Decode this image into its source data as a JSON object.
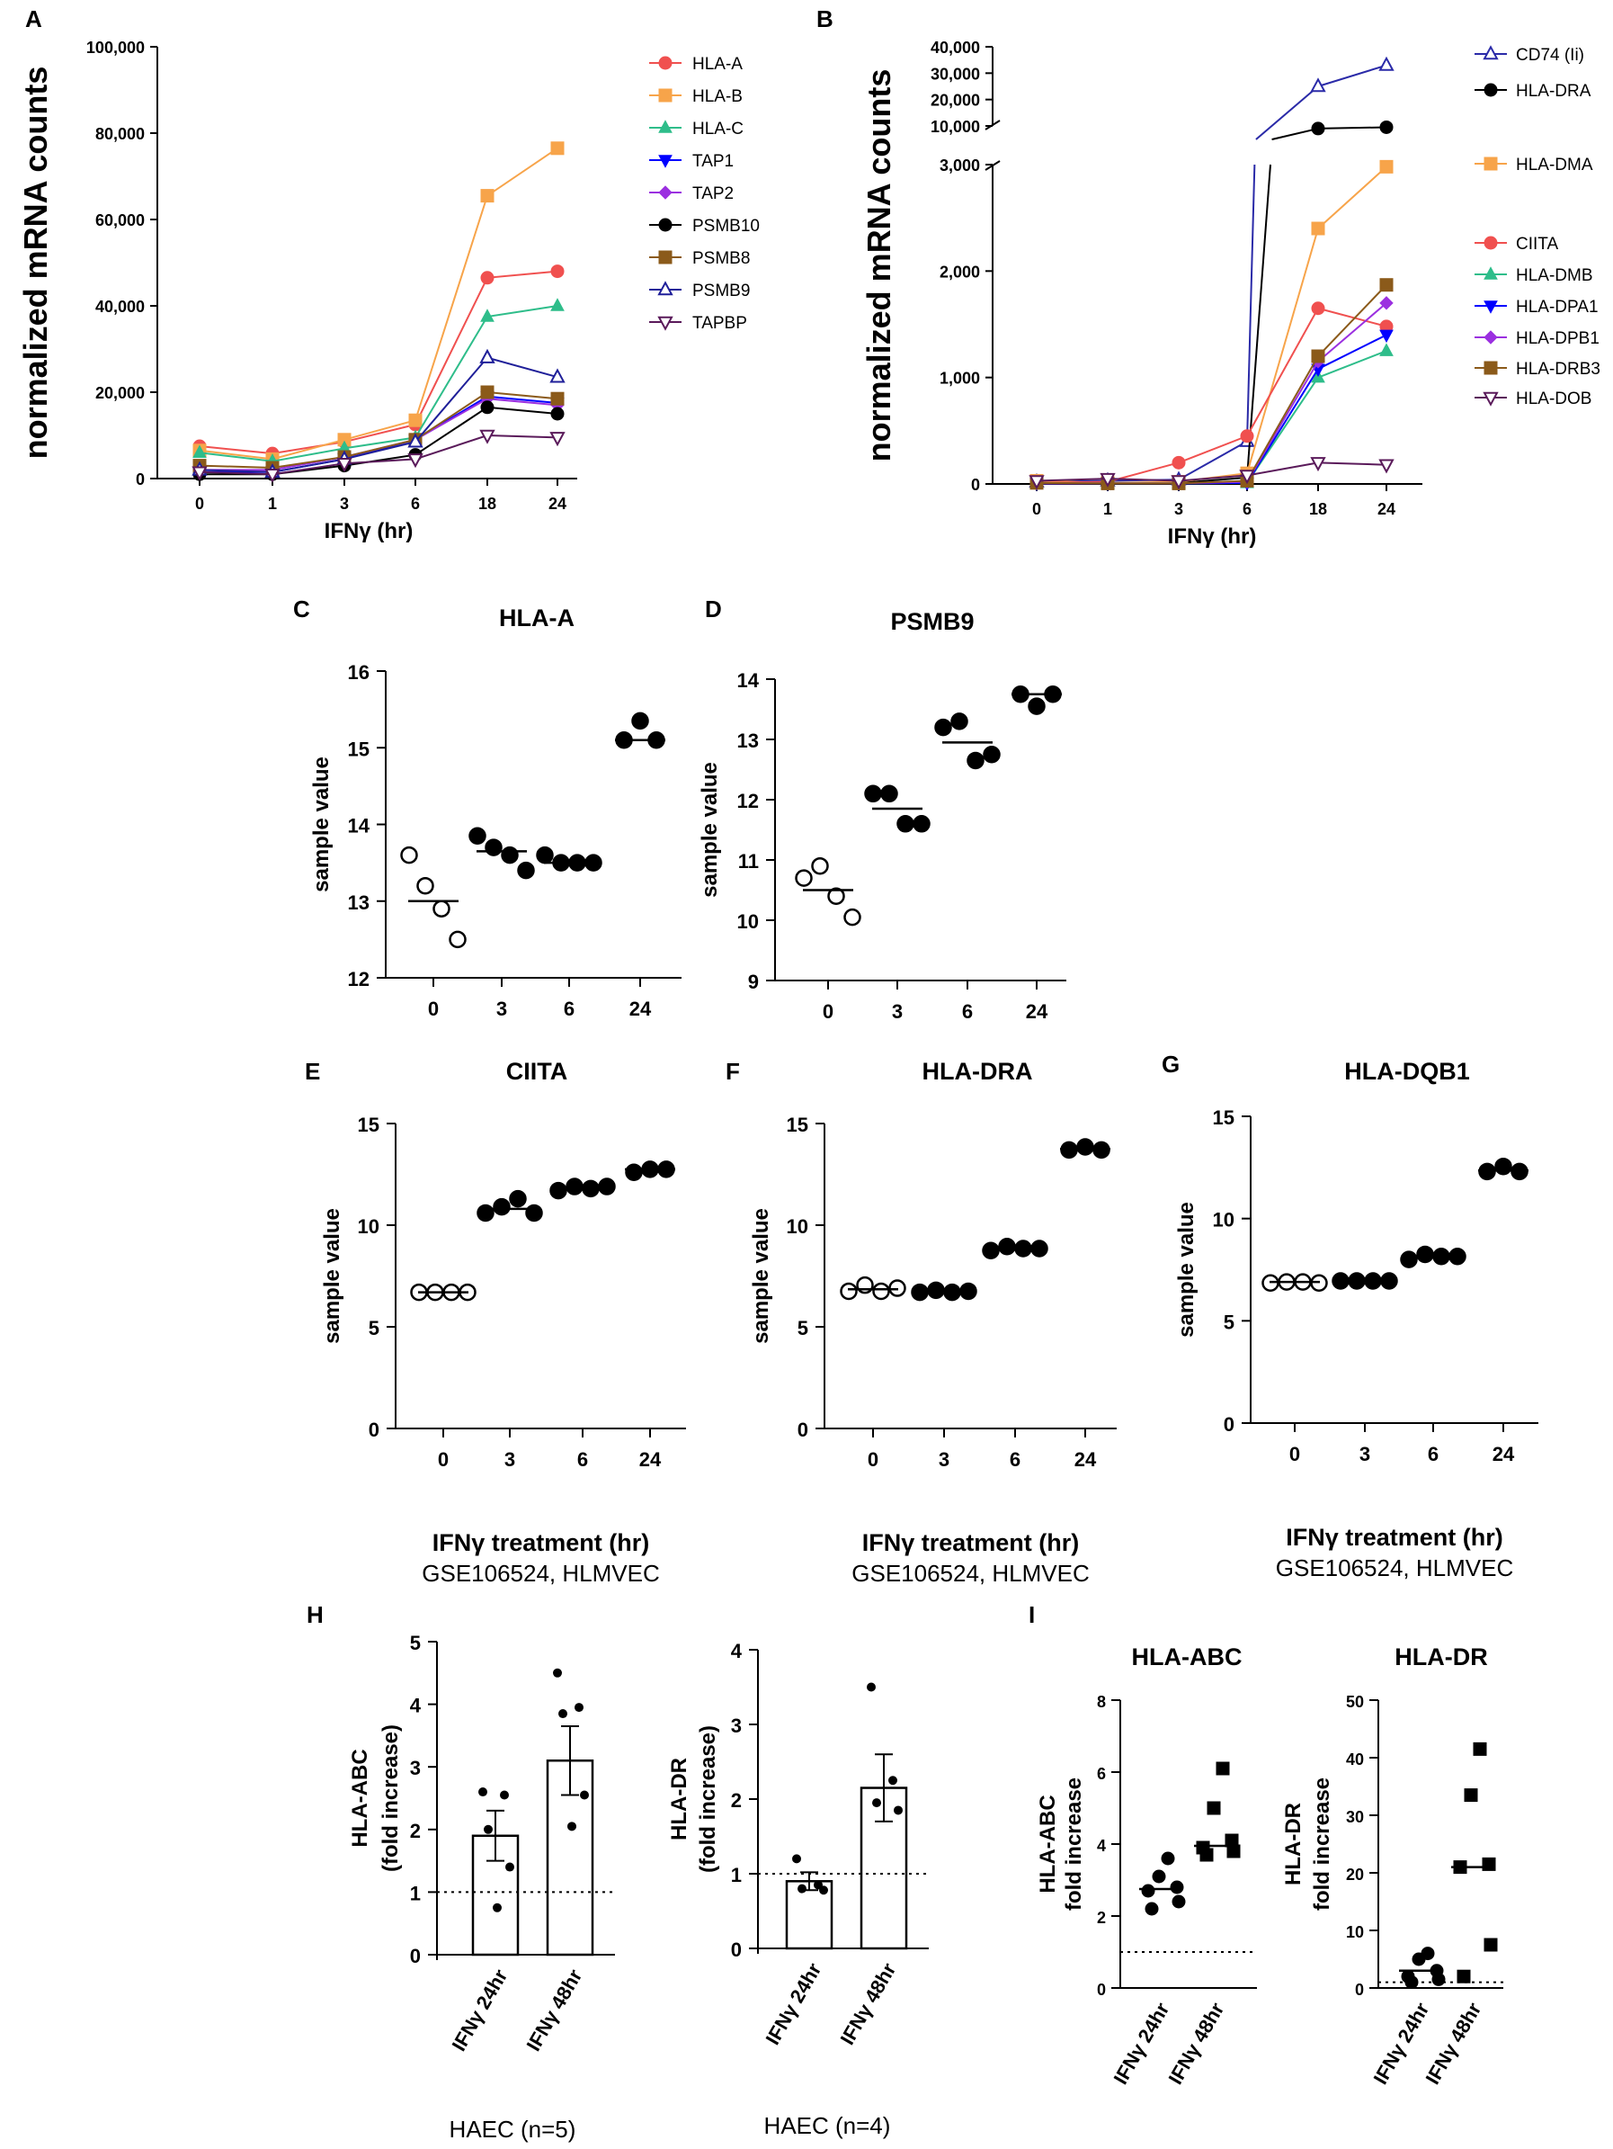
{
  "chart_data": [
    {
      "id": "A",
      "panel_label": "A",
      "type": "line",
      "title": "",
      "xlabel": "IFNγ (hr)",
      "ylabel": "normalized mRNA counts",
      "categories": [
        "0",
        "1",
        "3",
        "6",
        "18",
        "24"
      ],
      "ylim": [
        0,
        100000
      ],
      "yticks": [
        "0",
        "20,000",
        "40,000",
        "60,000",
        "80,000",
        "100,000"
      ],
      "series": [
        {
          "name": "HLA-A",
          "color": "#f0504f",
          "marker": "circle",
          "values": [
            7500,
            5800,
            8500,
            12500,
            46500,
            48000
          ]
        },
        {
          "name": "HLA-B",
          "color": "#f7a44a",
          "marker": "square",
          "values": [
            6500,
            4500,
            9000,
            13500,
            65500,
            76500
          ]
        },
        {
          "name": "HLA-C",
          "color": "#2ebd8a",
          "marker": "triangle-up",
          "values": [
            6000,
            4000,
            7000,
            9500,
            37500,
            40000
          ]
        },
        {
          "name": "TAP1",
          "color": "#0000ff",
          "marker": "triangle-down",
          "values": [
            1500,
            1500,
            4500,
            9000,
            19000,
            17500
          ]
        },
        {
          "name": "TAP2",
          "color": "#9b30e0",
          "marker": "diamond",
          "values": [
            2000,
            2000,
            5000,
            9000,
            18500,
            17000
          ]
        },
        {
          "name": "PSMB10",
          "color": "#000000",
          "marker": "circle",
          "values": [
            1000,
            1000,
            3000,
            5500,
            16500,
            15000
          ]
        },
        {
          "name": "PSMB8",
          "color": "#8b5a1a",
          "marker": "square",
          "values": [
            3000,
            2500,
            5000,
            9000,
            20000,
            18500
          ]
        },
        {
          "name": "PSMB9",
          "color": "#1f1f99",
          "marker": "triangle-up-open",
          "values": [
            2000,
            1500,
            4500,
            8500,
            28000,
            23500
          ]
        },
        {
          "name": "TAPBP",
          "color": "#5a1a5a",
          "marker": "triangle-down-open",
          "values": [
            1500,
            1000,
            3500,
            4500,
            10000,
            9500
          ]
        }
      ]
    },
    {
      "id": "B",
      "panel_label": "B",
      "type": "line",
      "title": "",
      "xlabel": "IFNγ (hr)",
      "ylabel": "normalized mRNA counts",
      "categories": [
        "0",
        "1",
        "3",
        "6",
        "18",
        "24"
      ],
      "ylim": [
        0,
        40000
      ],
      "axis_break": [
        3000,
        10000
      ],
      "yticks": [
        "0",
        "1,000",
        "2,000",
        "3,000",
        "10,000",
        "20,000",
        "30,000",
        "40,000"
      ],
      "series": [
        {
          "name": "CD74 (Ii)",
          "color": "#2a2aa8",
          "marker": "triangle-up-open",
          "values": [
            20,
            30,
            40,
            400,
            25000,
            33000
          ]
        },
        {
          "name": "HLA-DRA",
          "color": "#000000",
          "marker": "circle",
          "values": [
            10,
            10,
            10,
            60,
            9000,
            9500
          ]
        },
        {
          "name": "HLA-DMA",
          "color": "#f7a44a",
          "marker": "square",
          "values": [
            30,
            10,
            20,
            100,
            2400,
            2980
          ]
        },
        {
          "name": "CIITA",
          "color": "#f0504f",
          "marker": "circle",
          "values": [
            10,
            20,
            200,
            450,
            1650,
            1480
          ]
        },
        {
          "name": "HLA-DMB",
          "color": "#2ebd8a",
          "marker": "triangle-up",
          "values": [
            5,
            5,
            5,
            10,
            1000,
            1250
          ]
        },
        {
          "name": "HLA-DPA1",
          "color": "#0000ff",
          "marker": "triangle-down",
          "values": [
            5,
            5,
            5,
            10,
            1080,
            1400
          ]
        },
        {
          "name": "HLA-DPB1",
          "color": "#9b30e0",
          "marker": "diamond",
          "values": [
            5,
            5,
            5,
            20,
            1150,
            1700
          ]
        },
        {
          "name": "HLA-DRB3",
          "color": "#8b5a1a",
          "marker": "square",
          "values": [
            10,
            5,
            5,
            30,
            1200,
            1870
          ]
        },
        {
          "name": "HLA-DOB",
          "color": "#5a1a5a",
          "marker": "triangle-down-open",
          "values": [
            30,
            50,
            30,
            80,
            200,
            180
          ]
        }
      ]
    },
    {
      "id": "C",
      "panel_label": "C",
      "type": "scatter",
      "title": "HLA-A",
      "ylabel": "sample value",
      "xlabel": "",
      "categories": [
        "0",
        "3",
        "6",
        "24"
      ],
      "ylim": [
        12,
        16
      ],
      "yticks": [
        "12",
        "13",
        "14",
        "15",
        "16"
      ],
      "groups": [
        {
          "x": "0",
          "filled": false,
          "values": [
            13.6,
            13.2,
            12.9,
            12.5
          ],
          "mean": 13.0
        },
        {
          "x": "3",
          "filled": true,
          "values": [
            13.85,
            13.7,
            13.6,
            13.4
          ],
          "mean": 13.65
        },
        {
          "x": "6",
          "filled": true,
          "values": [
            13.6,
            13.5,
            13.5,
            13.5
          ],
          "mean": 13.5
        },
        {
          "x": "24",
          "filled": true,
          "values": [
            15.1,
            15.35,
            15.1
          ],
          "mean": 15.1
        }
      ]
    },
    {
      "id": "D",
      "panel_label": "D",
      "type": "scatter",
      "title": "PSMB9",
      "ylabel": "sample value",
      "xlabel": "",
      "categories": [
        "0",
        "3",
        "6",
        "24"
      ],
      "ylim": [
        9,
        14
      ],
      "yticks": [
        "9",
        "10",
        "11",
        "12",
        "13",
        "14"
      ],
      "groups": [
        {
          "x": "0",
          "filled": false,
          "values": [
            10.7,
            10.9,
            10.4,
            10.05
          ],
          "mean": 10.5
        },
        {
          "x": "3",
          "filled": true,
          "values": [
            12.1,
            12.1,
            11.6,
            11.6
          ],
          "mean": 11.85
        },
        {
          "x": "6",
          "filled": true,
          "values": [
            13.2,
            13.3,
            12.65,
            12.75
          ],
          "mean": 12.95
        },
        {
          "x": "24",
          "filled": true,
          "values": [
            13.75,
            13.55,
            13.75
          ],
          "mean": 13.75
        }
      ]
    },
    {
      "id": "E",
      "panel_label": "E",
      "type": "scatter",
      "title": "CIITA",
      "ylabel": "sample value",
      "xlabel": "IFNγ treatment  (hr)",
      "subtitle": "GSE106524,  HLMVEC",
      "categories": [
        "0",
        "3",
        "6",
        "24"
      ],
      "ylim": [
        0,
        15
      ],
      "yticks": [
        "0",
        "5",
        "10",
        "15"
      ],
      "groups": [
        {
          "x": "0",
          "filled": false,
          "values": [
            6.7,
            6.7,
            6.7,
            6.7
          ],
          "mean": 6.7
        },
        {
          "x": "3",
          "filled": true,
          "values": [
            10.6,
            10.9,
            11.3,
            10.6
          ],
          "mean": 10.8
        },
        {
          "x": "6",
          "filled": true,
          "values": [
            11.7,
            11.9,
            11.8,
            11.9
          ],
          "mean": 11.8
        },
        {
          "x": "24",
          "filled": true,
          "values": [
            12.6,
            12.75,
            12.75
          ],
          "mean": 12.75
        }
      ]
    },
    {
      "id": "F",
      "panel_label": "F",
      "type": "scatter",
      "title": "HLA-DRA",
      "ylabel": "sample value",
      "xlabel": "IFNγ treatment  (hr)",
      "subtitle": "GSE106524,  HLMVEC",
      "categories": [
        "0",
        "3",
        "6",
        "24"
      ],
      "ylim": [
        0,
        15
      ],
      "yticks": [
        "0",
        "5",
        "10",
        "15"
      ],
      "groups": [
        {
          "x": "0",
          "filled": false,
          "values": [
            6.75,
            7.05,
            6.75,
            6.9
          ],
          "mean": 6.85
        },
        {
          "x": "3",
          "filled": true,
          "values": [
            6.7,
            6.8,
            6.7,
            6.75
          ],
          "mean": 6.75
        },
        {
          "x": "6",
          "filled": true,
          "values": [
            8.75,
            8.95,
            8.85,
            8.85
          ],
          "mean": 8.85
        },
        {
          "x": "24",
          "filled": true,
          "values": [
            13.7,
            13.85,
            13.7
          ],
          "mean": 13.75
        }
      ]
    },
    {
      "id": "G",
      "panel_label": "G",
      "type": "scatter",
      "title": "HLA-DQB1",
      "ylabel": "sample value",
      "xlabel": "IFNγ treatment  (hr)",
      "subtitle": "GSE106524,  HLMVEC",
      "categories": [
        "0",
        "3",
        "6",
        "24"
      ],
      "ylim": [
        0,
        15
      ],
      "yticks": [
        "0",
        "5",
        "10",
        "15"
      ],
      "groups": [
        {
          "x": "0",
          "filled": false,
          "values": [
            6.85,
            6.9,
            6.9,
            6.85
          ],
          "mean": 6.9
        },
        {
          "x": "3",
          "filled": true,
          "values": [
            6.95,
            6.95,
            6.95,
            6.95
          ],
          "mean": 6.95
        },
        {
          "x": "6",
          "filled": true,
          "values": [
            8.0,
            8.25,
            8.15,
            8.15
          ],
          "mean": 8.15
        },
        {
          "x": "24",
          "filled": true,
          "values": [
            12.3,
            12.55,
            12.3
          ],
          "mean": 12.35
        }
      ]
    },
    {
      "id": "H1",
      "panel_label": "H",
      "type": "bar",
      "title": "",
      "ylabel": "HLA-ABC",
      "ylabel2": "(fold increase)",
      "categories": [
        "IFNγ 24hr",
        "IFNγ 48hr"
      ],
      "footer": "HAEC (n=5)",
      "ylim": [
        0,
        5
      ],
      "yticks": [
        "0",
        "1",
        "2",
        "3",
        "4",
        "5"
      ],
      "reference_line": 1,
      "values": [
        1.9,
        3.1
      ],
      "error": [
        0.4,
        0.55
      ],
      "points": [
        [
          2.6,
          2.55,
          2.0,
          1.4,
          0.75
        ],
        [
          4.5,
          3.95,
          3.85,
          2.55,
          2.05
        ]
      ]
    },
    {
      "id": "H2",
      "panel_label": "",
      "type": "bar",
      "title": "",
      "ylabel": "HLA-DR",
      "ylabel2": "(fold increase)",
      "categories": [
        "IFNγ 24hr",
        "IFNγ 48hr"
      ],
      "footer": "HAEC (n=4)",
      "ylim": [
        0,
        4
      ],
      "yticks": [
        "0",
        "1",
        "2",
        "3",
        "4"
      ],
      "reference_line": 1,
      "values": [
        0.9,
        2.15
      ],
      "error": [
        0.12,
        0.45
      ],
      "points": [
        [
          1.2,
          0.85,
          0.8,
          0.78
        ],
        [
          3.5,
          2.25,
          1.95,
          1.85
        ]
      ]
    },
    {
      "id": "I1",
      "panel_label": "I",
      "type": "scatter",
      "title": "HLA-ABC",
      "ylabel": "HLA-ABC",
      "ylabel2": "fold increase",
      "categories": [
        "IFNγ 24hr",
        "IFNγ 48hr"
      ],
      "ylim": [
        0,
        8
      ],
      "yticks": [
        "0",
        "2",
        "4",
        "6",
        "8"
      ],
      "reference_line": 1,
      "groups": [
        {
          "x": "IFNγ 24hr",
          "marker": "circle",
          "values": [
            3.6,
            3.1,
            2.8,
            2.7,
            2.4,
            2.2
          ],
          "median": 2.75
        },
        {
          "x": "IFNγ 48hr",
          "marker": "square",
          "values": [
            6.1,
            5.0,
            4.1,
            3.9,
            3.8,
            3.7
          ],
          "median": 3.95
        }
      ]
    },
    {
      "id": "I2",
      "panel_label": "",
      "type": "scatter",
      "title": "HLA-DR",
      "ylabel": "HLA-DR",
      "ylabel2": "fold increase",
      "categories": [
        "IFNγ 24hr",
        "IFNγ 48hr"
      ],
      "ylim": [
        0,
        50
      ],
      "yticks": [
        "0",
        "10",
        "20",
        "30",
        "40",
        "50"
      ],
      "reference_line": 1,
      "groups": [
        {
          "x": "IFNγ 24hr",
          "marker": "circle",
          "values": [
            6,
            5,
            3,
            2,
            1.5,
            1
          ],
          "median": 3
        },
        {
          "x": "IFNγ 48hr",
          "marker": "square",
          "values": [
            41.5,
            33.5,
            21.5,
            21,
            7.5,
            2
          ],
          "median": 21
        }
      ]
    }
  ]
}
